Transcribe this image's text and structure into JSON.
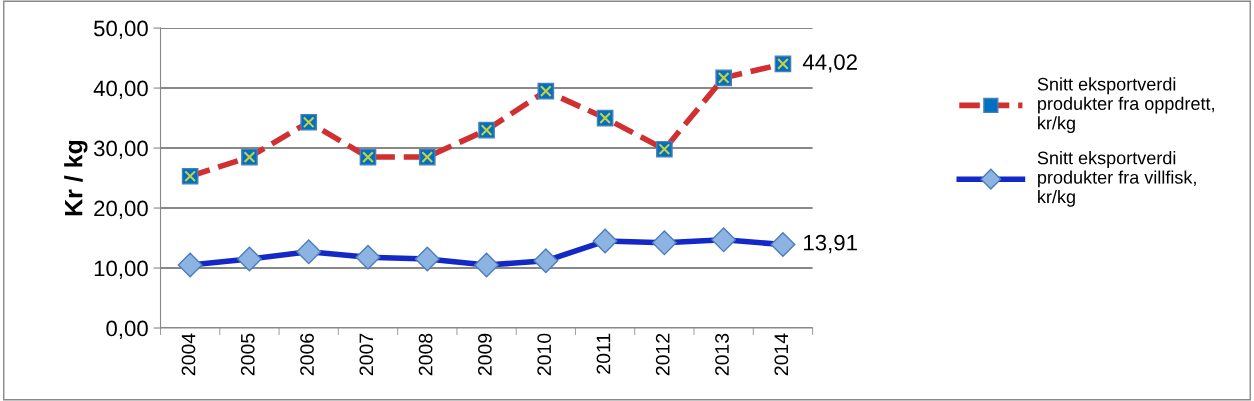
{
  "chart_data": {
    "type": "line",
    "ylabel": "Kr / kg",
    "categories": [
      "2004",
      "2005",
      "2006",
      "2007",
      "2008",
      "2009",
      "2010",
      "2011",
      "2012",
      "2013",
      "2014"
    ],
    "series": [
      {
        "name": "Snitt eksportverdi produkter fra oppdrett, kr/kg",
        "color": "#d03030",
        "marker": "square",
        "line_style": "dashed",
        "values": [
          25.3,
          28.5,
          34.3,
          28.5,
          28.5,
          33.0,
          39.5,
          35.0,
          29.8,
          41.7,
          44.02
        ],
        "value_labels": [
          null,
          null,
          null,
          null,
          null,
          null,
          null,
          null,
          null,
          null,
          "44,02"
        ]
      },
      {
        "name": "Snitt eksportverdi produkter fra villfisk, kr/kg",
        "color": "#1428c8",
        "marker": "diamond",
        "line_style": "solid",
        "values": [
          10.5,
          11.5,
          12.7,
          11.8,
          11.5,
          10.5,
          11.2,
          14.5,
          14.2,
          14.7,
          13.91
        ],
        "value_labels": [
          null,
          null,
          null,
          null,
          null,
          null,
          null,
          null,
          null,
          null,
          "13,91"
        ]
      }
    ],
    "ylim": [
      0,
      50
    ],
    "yticks": [
      {
        "value": 0,
        "label": "0,00"
      },
      {
        "value": 10,
        "label": "10,00"
      },
      {
        "value": 20,
        "label": "20,00"
      },
      {
        "value": 30,
        "label": "30,00"
      },
      {
        "value": 40,
        "label": "40,00"
      },
      {
        "value": 50,
        "label": "50,00"
      }
    ],
    "grid": "y",
    "legend": "right"
  }
}
